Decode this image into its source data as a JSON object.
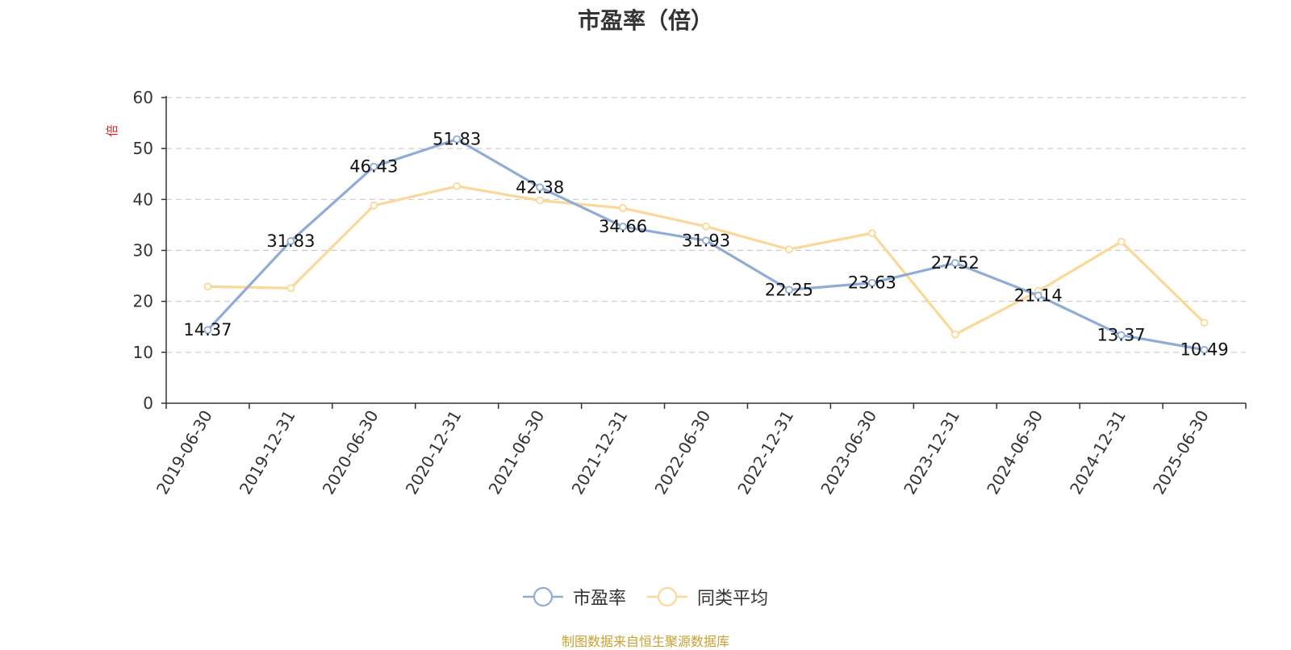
{
  "chart_data": {
    "type": "line",
    "title": "市盈率（倍）",
    "ylabel": "倍",
    "xlabel": "",
    "categories": [
      "2019-06-30",
      "2019-12-31",
      "2020-06-30",
      "2020-12-31",
      "2021-06-30",
      "2021-12-31",
      "2022-06-30",
      "2022-12-31",
      "2023-06-30",
      "2023-12-31",
      "2024-06-30",
      "2024-12-31",
      "2025-06-30"
    ],
    "ylim": [
      0,
      60
    ],
    "yticks": [
      0,
      10,
      20,
      30,
      40,
      50,
      60
    ],
    "grid": true,
    "legend_position": "bottom",
    "series": [
      {
        "name": "市盈率",
        "color": "#8eacd6",
        "values": [
          14.37,
          31.83,
          46.43,
          51.83,
          42.38,
          34.66,
          31.93,
          22.25,
          23.63,
          27.52,
          21.14,
          13.37,
          10.49
        ],
        "labels": [
          "14.37",
          "31.83",
          "46.43",
          "51.83",
          "42.38",
          "34.66",
          "31.93",
          "22.25",
          "23.63",
          "27.52",
          "21.14",
          "13.37",
          "10.49"
        ]
      },
      {
        "name": "同类平均",
        "color": "#f9d898",
        "values": [
          22.9,
          22.6,
          38.8,
          42.6,
          39.8,
          38.3,
          34.7,
          30.2,
          33.4,
          13.5,
          22.0,
          31.7,
          15.8
        ]
      }
    ]
  },
  "footer": "制图数据来自恒生聚源数据库"
}
